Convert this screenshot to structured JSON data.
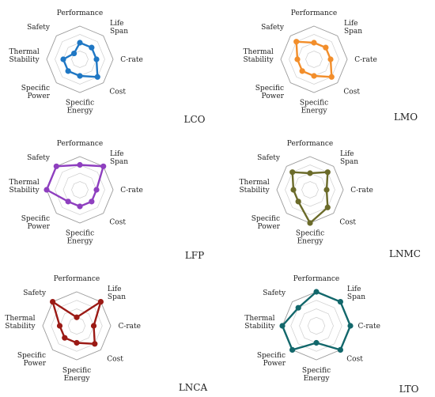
{
  "chart_data": [
    {
      "type": "radar",
      "name": "LCO",
      "color": "#1f77c4",
      "axes": [
        "Performance",
        "Life Span",
        "C-rate",
        "Cost",
        "Specific Energy",
        "Specific Power",
        "Thermal Stability",
        "Safety"
      ],
      "values": [
        2,
        2,
        2,
        3,
        2,
        2,
        2,
        1
      ],
      "rlim": [
        0,
        4
      ]
    },
    {
      "type": "radar",
      "name": "LMO",
      "color": "#f28e2b",
      "axes": [
        "Performance",
        "Life Span",
        "C-rate",
        "Cost",
        "Specific Energy",
        "Specific Power",
        "Thermal Stability",
        "Safety"
      ],
      "values": [
        2,
        2,
        2,
        3,
        2,
        2,
        2,
        3
      ],
      "rlim": [
        0,
        4
      ]
    },
    {
      "type": "radar",
      "name": "LFP",
      "color": "#8e3fbf",
      "axes": [
        "Performance",
        "Life Span",
        "C-rate",
        "Cost",
        "Specific Energy",
        "Specific Power",
        "Thermal Stability",
        "Safety"
      ],
      "values": [
        3,
        4,
        2,
        2,
        2,
        2,
        4,
        4
      ],
      "rlim": [
        0,
        4
      ]
    },
    {
      "type": "radar",
      "name": "LNMC",
      "color": "#6b6b2a",
      "axes": [
        "Performance",
        "Life Span",
        "C-rate",
        "Cost",
        "Specific Energy",
        "Specific Power",
        "Thermal Stability",
        "Safety"
      ],
      "values": [
        2,
        3,
        2,
        3,
        4,
        2,
        2,
        3
      ],
      "rlim": [
        0,
        4
      ]
    },
    {
      "type": "radar",
      "name": "LNCA",
      "color": "#9b1a15",
      "axes": [
        "Performance",
        "Life Span",
        "C-rate",
        "Cost",
        "Specific Energy",
        "Specific Power",
        "Thermal Stability",
        "Safety"
      ],
      "values": [
        1,
        4,
        2,
        3,
        2,
        2,
        2,
        4
      ],
      "rlim": [
        0,
        4
      ]
    },
    {
      "type": "radar",
      "name": "LTO",
      "color": "#12676b",
      "axes": [
        "Performance",
        "Life Span",
        "C-rate",
        "Cost",
        "Specific Energy",
        "Specific Power",
        "Thermal Stability",
        "Safety"
      ],
      "values": [
        4,
        4,
        4,
        4,
        2,
        4,
        4,
        3
      ],
      "rlim": [
        0,
        4
      ]
    }
  ]
}
